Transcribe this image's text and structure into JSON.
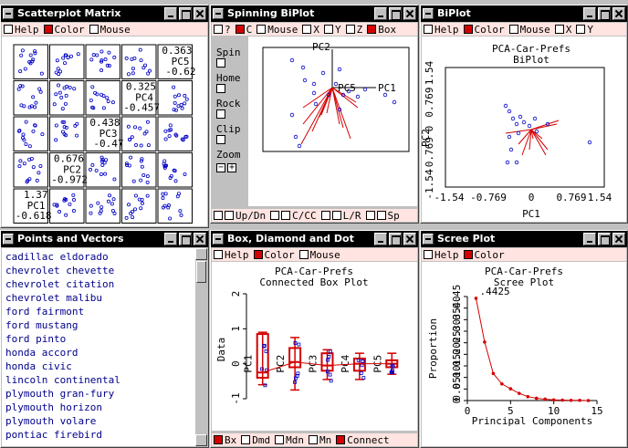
{
  "windows": {
    "scatter": {
      "title": "Scatterplot Matrix",
      "menu": [
        {
          "label": "Help",
          "on": false
        },
        {
          "label": "Color",
          "on": true
        },
        {
          "label": "Mouse",
          "on": false
        }
      ],
      "diag": [
        {
          "val": "0.363",
          "lab": "PC5",
          "min": "-0.62"
        },
        {
          "val": "0.325",
          "lab": "PC4",
          "min": "-0.457"
        },
        {
          "val": "0.438",
          "lab": "PC3",
          "min": "-0.47"
        },
        {
          "val": "0.676",
          "lab": "PC2",
          "min": "-0.972"
        },
        {
          "val": "1.37",
          "lab": "PC1",
          "min": "-0.618"
        }
      ]
    },
    "spin": {
      "title": "Spinning BiPlot",
      "menu": [
        {
          "label": "?",
          "on": false
        },
        {
          "label": "C",
          "on": true
        },
        {
          "label": "Mouse",
          "on": false
        },
        {
          "label": "X",
          "on": false
        },
        {
          "label": "Y",
          "on": false
        },
        {
          "label": "Z",
          "on": false
        },
        {
          "label": "Box",
          "on": true
        }
      ],
      "controls": [
        "Spin",
        "Home",
        "Rock",
        "Clip"
      ],
      "zoom": "Zoom",
      "bottom": [
        "Up/Dn",
        "C/CC",
        "L/R",
        "Sp"
      ],
      "axes": [
        "PC2",
        "PC5",
        "PC1"
      ]
    },
    "biplot": {
      "title": "BiPlot",
      "menu": [
        {
          "label": "Help",
          "on": false
        },
        {
          "label": "Color",
          "on": true
        },
        {
          "label": "Mouse",
          "on": false
        },
        {
          "label": "X",
          "on": false
        },
        {
          "label": "Y",
          "on": false
        }
      ],
      "plot_title": "PCA-Car-Prefs",
      "plot_subtitle": "BiPlot",
      "xlabel": "PC1",
      "ylabel": "PC2",
      "ticks": [
        "-1.54",
        "-0.769",
        "0",
        "0.769",
        "1.54"
      ]
    },
    "points": {
      "title": "Points and Vectors",
      "items": [
        "cadillac eldorado",
        "chevrolet chevette",
        "chevrolet citation",
        "chevrolet malibu",
        "ford fairmont",
        "ford mustang",
        "ford pinto",
        "honda accord",
        "honda civic",
        "lincoln continental",
        "plymouth gran-fury",
        "plymouth horizon",
        "plymouth volare",
        "pontiac firebird"
      ]
    },
    "box": {
      "title": "Box, Diamond and Dot ...",
      "menu": [
        {
          "label": "Help",
          "on": false
        },
        {
          "label": "Color",
          "on": true
        },
        {
          "label": "Mouse",
          "on": false
        }
      ],
      "plot_title": "PCA-Car-Prefs",
      "plot_subtitle": "Connected Box Plot",
      "ylabel": "Data",
      "yticks": [
        "-1",
        "0",
        "1",
        "2"
      ],
      "categories": [
        "PC1",
        "PC2",
        "PC3",
        "PC4",
        "PC5"
      ],
      "bottom": [
        {
          "label": "Bx",
          "on": true
        },
        {
          "label": "Dmd",
          "on": false
        },
        {
          "label": "Mdn",
          "on": false
        },
        {
          "label": "Mn",
          "on": false
        },
        {
          "label": "Connect",
          "on": true
        }
      ]
    },
    "scree": {
      "title": "Scree Plot",
      "menu": [
        {
          "label": "Help",
          "on": false
        },
        {
          "label": "Color",
          "on": true
        }
      ],
      "plot_title": "PCA-Car-Prefs",
      "plot_subtitle": "Scree Plot",
      "annotation": ".4425",
      "xlabel": "Principal Components",
      "ylabel": "Proportion"
    }
  },
  "chart_data": [
    {
      "type": "line",
      "title": "PCA-Car-Prefs",
      "subtitle": "Scree Plot",
      "xlabel": "Principal Components",
      "ylabel": "Proportion",
      "x": [
        1,
        2,
        3,
        4,
        5,
        6,
        7,
        8,
        9,
        10,
        11,
        12,
        13,
        14
      ],
      "values": [
        0.4425,
        0.253,
        0.117,
        0.072,
        0.051,
        0.031,
        0.017,
        0.01,
        0.006,
        0.003,
        0.002,
        0.001,
        0.001,
        0.0
      ],
      "xticks": [
        "0",
        "5",
        "10",
        "15"
      ],
      "yticks": [
        "0",
        "0.05",
        "0.10",
        "0.15",
        "0.20",
        "0.25",
        "0.30",
        "0.35",
        "0.40",
        "0.45"
      ],
      "xlim": [
        0,
        15
      ],
      "ylim": [
        0,
        0.45
      ]
    },
    {
      "type": "box",
      "title": "PCA-Car-Prefs",
      "subtitle": "Connected Box Plot",
      "ylabel": "Data",
      "categories": [
        "PC1",
        "PC2",
        "PC3",
        "PC4",
        "PC5"
      ],
      "stats": [
        {
          "q1": -0.4,
          "med": -0.25,
          "q3": 0.85,
          "lo": -0.6,
          "hi": 0.9
        },
        {
          "q1": -0.1,
          "med": 0.05,
          "q3": 0.45,
          "lo": -0.75,
          "hi": 0.75
        },
        {
          "q1": -0.2,
          "med": -0.05,
          "q3": 0.3,
          "lo": -0.45,
          "hi": 0.4
        },
        {
          "q1": -0.2,
          "med": 0.0,
          "q3": 0.15,
          "lo": -0.45,
          "hi": 0.3
        },
        {
          "q1": -0.1,
          "med": 0.0,
          "q3": 0.1,
          "lo": -0.3,
          "hi": 0.3
        }
      ],
      "ylim": [
        -1,
        2
      ]
    }
  ]
}
